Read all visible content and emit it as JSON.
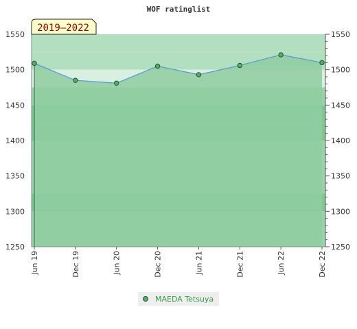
{
  "chart_data": {
    "type": "area",
    "title": "WOF ratinglist",
    "period_label": "2019–2022",
    "categories": [
      "Jun 19",
      "Dec 19",
      "Jun 20",
      "Dec 20",
      "Jun 21",
      "Dec 21",
      "Jun 22",
      "Dec 22"
    ],
    "series": [
      {
        "name": "MAEDA Tetsuya",
        "values": [
          1509,
          1485,
          1481,
          1505,
          1493,
          1506,
          1521,
          1510
        ]
      }
    ],
    "ylim": [
      1250,
      1550
    ],
    "yticks": [
      1250,
      1300,
      1350,
      1400,
      1450,
      1500,
      1550
    ],
    "xlabel": "",
    "ylabel": "",
    "grid": false,
    "legend_position": "bottom",
    "colors": {
      "line": "#5b9bd5",
      "area": "#8fcda0",
      "marker_fill": "#5aa870",
      "marker_stroke": "#1e5a2a",
      "band_light": "#b3dfc1",
      "band_mid": "#9ad3ab",
      "band_dark": "#7fc595",
      "band_faint": "#d9efe0",
      "period_bg": "#ffffcc"
    }
  }
}
